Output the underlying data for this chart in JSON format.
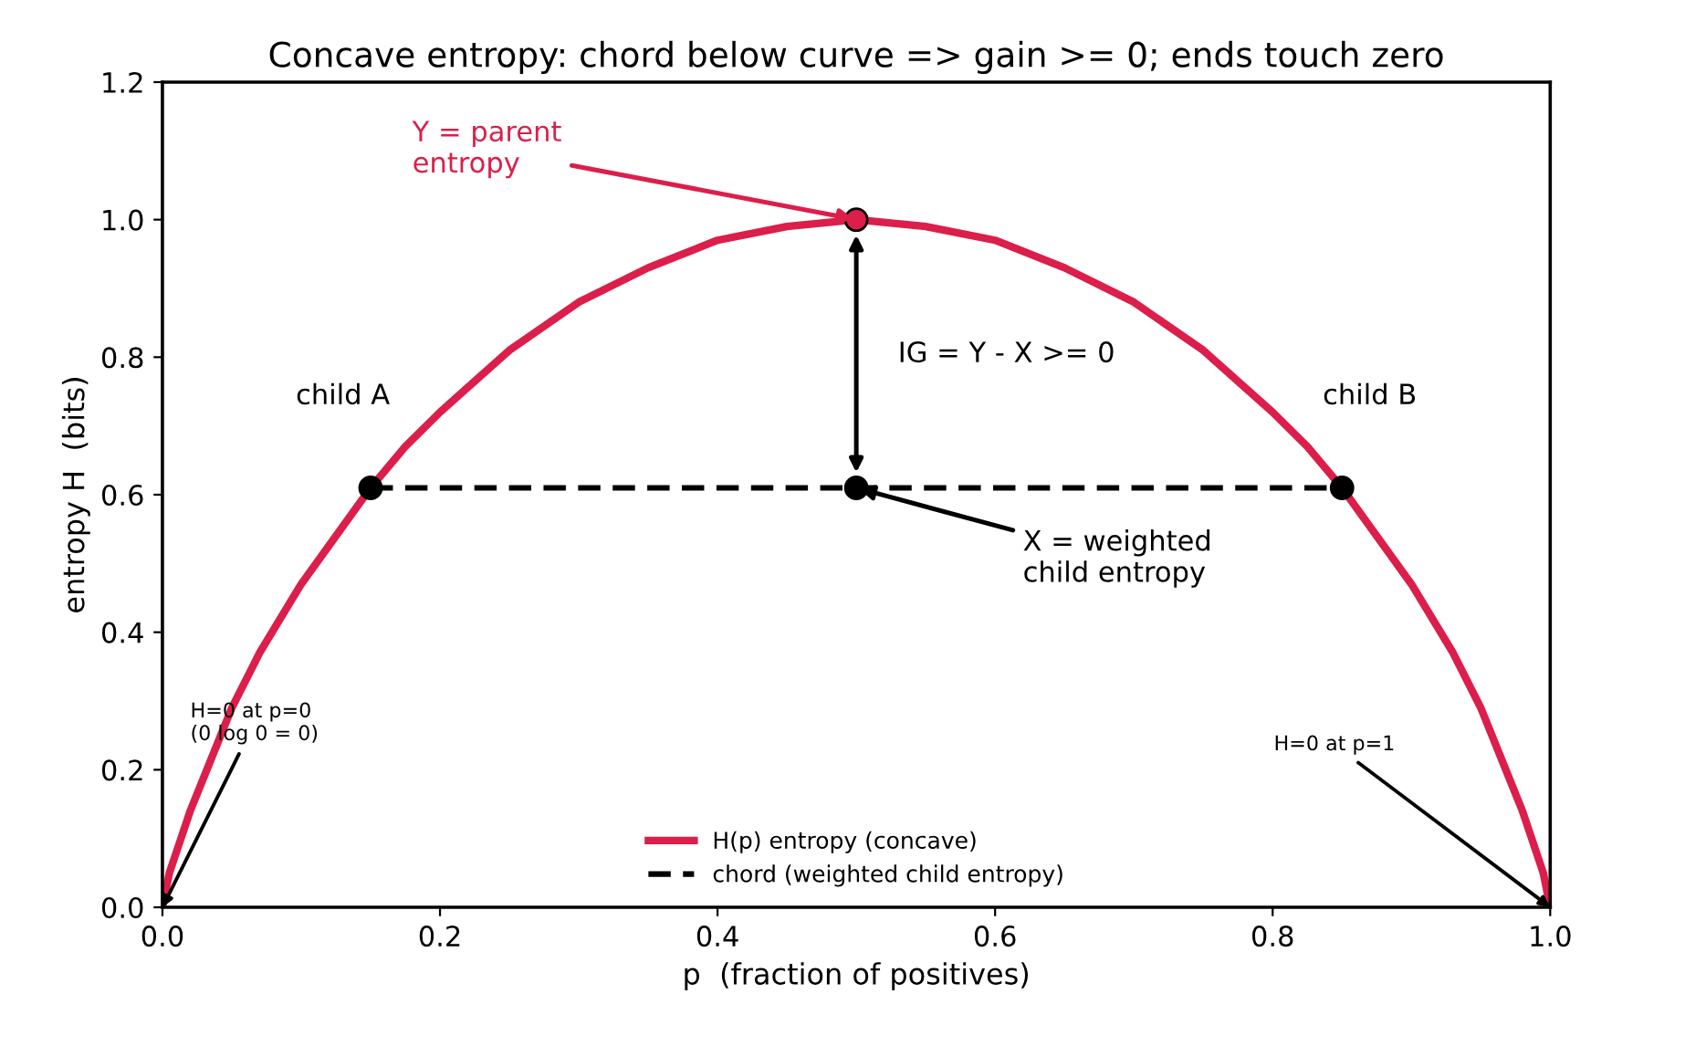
{
  "chart_data": {
    "type": "line",
    "title": "Concave entropy: chord below curve => gain >= 0; ends touch zero",
    "xlabel": "p  (fraction of positives)",
    "ylabel": "entropy H  (bits)",
    "xlim": [
      0,
      1
    ],
    "ylim": [
      0,
      1.2
    ],
    "xticks": [
      {
        "value": 0,
        "label": "0.0"
      },
      0.2,
      0.4,
      0.6,
      0.8,
      {
        "value": 1,
        "label": "1.0"
      }
    ],
    "yticks": [
      {
        "value": 0,
        "label": "0.0"
      },
      0.2,
      0.4,
      0.6,
      0.8,
      {
        "value": 1,
        "label": "1.0"
      },
      1.2
    ],
    "legend": "bottom",
    "series": [
      {
        "name": "H(p) entropy (concave)",
        "color": "#dc1e4b",
        "line_style": "solid",
        "x": [
          0,
          0.005,
          0.01,
          0.02,
          0.03,
          0.05,
          0.07,
          0.1,
          0.125,
          0.15,
          0.175,
          0.2,
          0.25,
          0.3,
          0.35,
          0.4,
          0.45,
          0.5,
          0.55,
          0.6,
          0.65,
          0.7,
          0.75,
          0.8,
          0.825,
          0.85,
          0.875,
          0.9,
          0.93,
          0.95,
          0.97,
          0.98,
          0.99,
          0.995,
          1
        ],
        "values": [
          0,
          0.05,
          0.08,
          0.14,
          0.19,
          0.29,
          0.37,
          0.47,
          0.54,
          0.61,
          0.67,
          0.72,
          0.81,
          0.88,
          0.93,
          0.97,
          0.99,
          1.0,
          0.99,
          0.97,
          0.93,
          0.88,
          0.81,
          0.72,
          0.67,
          0.61,
          0.54,
          0.47,
          0.37,
          0.29,
          0.19,
          0.14,
          0.08,
          0.05,
          0
        ]
      },
      {
        "name": "chord (weighted child entropy)",
        "type": "line",
        "color": "#000000",
        "line_style": "dashed",
        "x": [
          0.15,
          0.85
        ],
        "values": [
          0.61,
          0.61
        ]
      },
      {
        "type": "scatter",
        "color": "#000000",
        "marker": "circle",
        "x": [
          0.15,
          0.5,
          0.85
        ],
        "values": [
          0.61,
          0.61,
          0.61
        ]
      },
      {
        "type": "scatter",
        "color": "#dc1e4b",
        "marker": "circle",
        "x": [
          0.5
        ],
        "values": [
          1.0
        ]
      }
    ],
    "annotations": [
      {
        "text": "Y = parent\nentropy",
        "x": 0.5,
        "y": 1.0
      },
      "IG = Y - X >= 0",
      {
        "text": "X = weighted\nchild entropy",
        "x": 0.5,
        "y": 0.61
      },
      {
        "text": "H=0 at p=0\n(0 log 0 = 0)",
        "x": 0,
        "y": 0
      },
      {
        "text": "H=0 at p=1",
        "x": 1,
        "y": 0
      },
      "child A",
      "child B"
    ]
  }
}
